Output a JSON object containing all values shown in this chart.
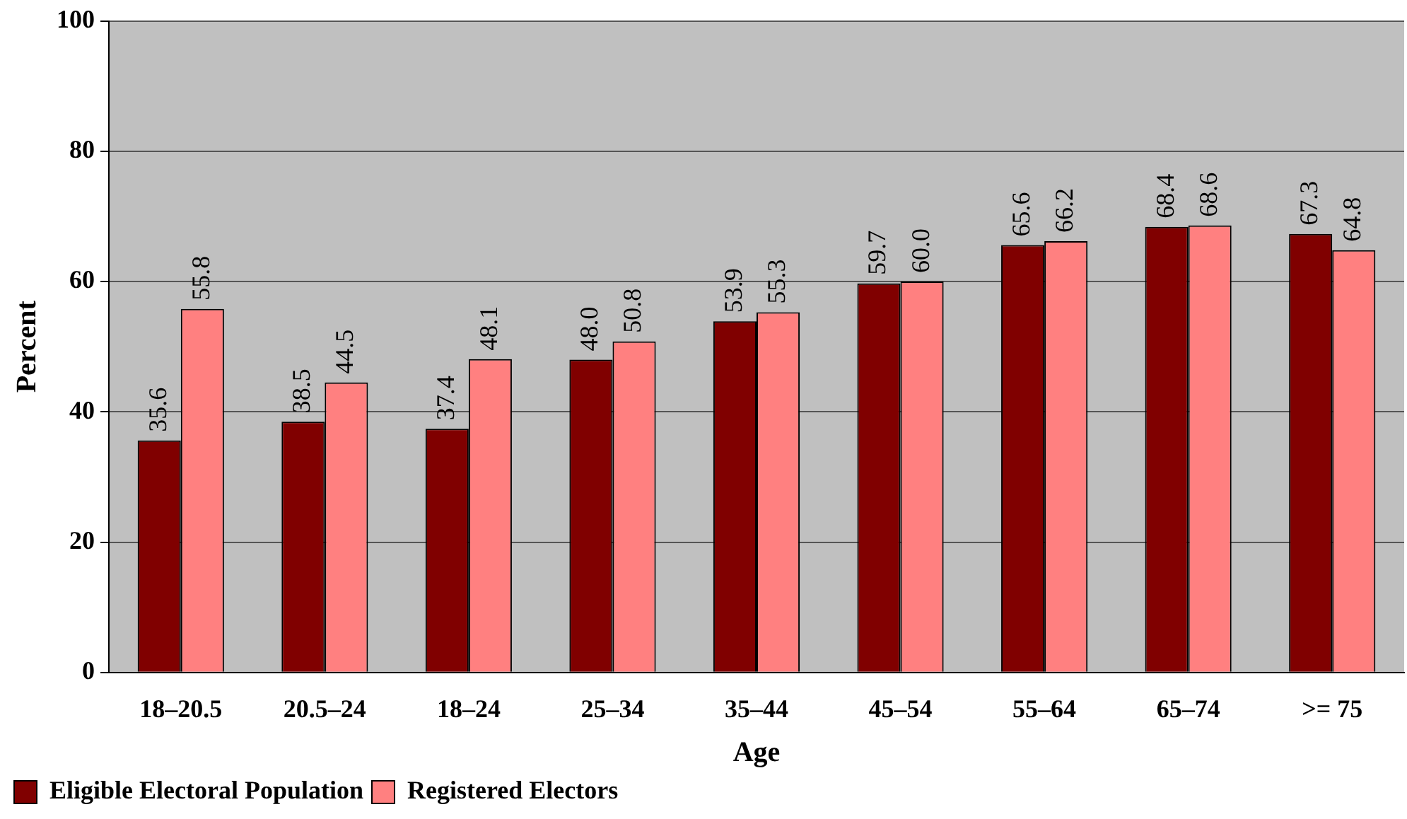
{
  "chart_data": {
    "type": "bar",
    "xlabel": "Age",
    "ylabel": "Percent",
    "categories": [
      "18–20.5",
      "20.5–24",
      "18–24",
      "25–34",
      "35–44",
      "45–54",
      "55–64",
      "65–74",
      ">= 75"
    ],
    "series": [
      {
        "name": "Eligible Electoral Population",
        "color": "#800000",
        "values": [
          35.6,
          38.5,
          37.4,
          48.0,
          53.9,
          59.7,
          65.6,
          68.4,
          67.3
        ],
        "value_labels": [
          "35.6",
          "38.5",
          "37.4",
          "48.0",
          "53.9",
          "59.7",
          "65.6",
          "68.4",
          "67.3"
        ]
      },
      {
        "name": "Registered Electors",
        "color": "#ff8080",
        "values": [
          55.8,
          44.5,
          48.1,
          50.8,
          55.3,
          60.0,
          66.2,
          68.6,
          64.8
        ],
        "value_labels": [
          "55.8",
          "44.5",
          "48.1",
          "50.8",
          "55.3",
          "60.0",
          "66.2",
          "68.6",
          "64.8"
        ]
      }
    ],
    "ylim": [
      0,
      100
    ],
    "yticks": [
      0,
      20,
      40,
      60,
      80,
      100
    ],
    "grid": "y",
    "legend": "bottom left"
  }
}
